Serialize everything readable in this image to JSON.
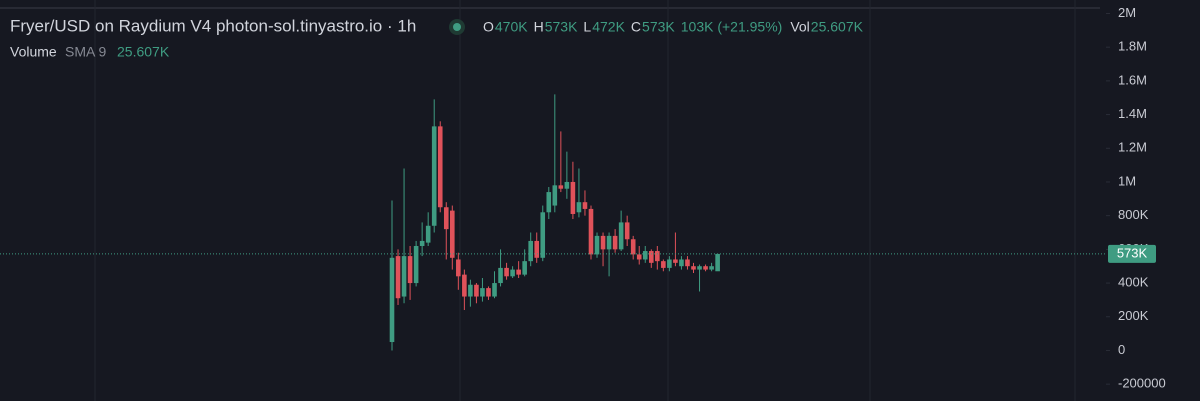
{
  "chart_data": {
    "type": "candlestick",
    "title": "Fryer/USD on Raydium V4 photon-sol.tinyastro.io · 1h",
    "ohlc_legend": [
      {
        "key": "O",
        "value": "470K"
      },
      {
        "key": "H",
        "value": "573K"
      },
      {
        "key": "L",
        "value": "472K"
      },
      {
        "key": "C",
        "value": "573K"
      }
    ],
    "change": "103K (+21.95%)",
    "volume_legend": {
      "key": "Vol",
      "value": "25.607K"
    },
    "indicator": {
      "name": "Volume",
      "params": "SMA 9",
      "value": "25.607K"
    },
    "last_price": {
      "value": 573000,
      "label": "573K"
    },
    "up_color": "#3f9c82",
    "down_color": "#e0525a",
    "ylim": [
      -300000,
      2080000
    ],
    "yticks": [
      {
        "value": 2000000,
        "label": "2M"
      },
      {
        "value": 1800000,
        "label": "1.8M"
      },
      {
        "value": 1600000,
        "label": "1.6M"
      },
      {
        "value": 1400000,
        "label": "1.4M"
      },
      {
        "value": 1200000,
        "label": "1.2M"
      },
      {
        "value": 1000000,
        "label": "1M"
      },
      {
        "value": 800000,
        "label": "800K"
      },
      {
        "value": 600000,
        "label": "600K"
      },
      {
        "value": 400000,
        "label": "400K"
      },
      {
        "value": 200000,
        "label": "200K"
      },
      0,
      -200000
    ],
    "categories": [
      null,
      null,
      null,
      null,
      null,
      null,
      null,
      null,
      null,
      null,
      null,
      null,
      null,
      null,
      null,
      null,
      null,
      null,
      null,
      null,
      null,
      null,
      null,
      null,
      null,
      null,
      null,
      null,
      null,
      null,
      null,
      null,
      null,
      null,
      null,
      null,
      null,
      null,
      null,
      null,
      null,
      null,
      null,
      null,
      null,
      null,
      null,
      null,
      null,
      null,
      null,
      null,
      null,
      null,
      null
    ],
    "open": [
      50000,
      560000,
      320000,
      560000,
      400000,
      620000,
      640000,
      740000,
      1330000,
      850000,
      830000,
      540000,
      450000,
      320000,
      390000,
      320000,
      370000,
      320000,
      400000,
      490000,
      440000,
      480000,
      450000,
      530000,
      650000,
      550000,
      820000,
      860000,
      980000,
      960000,
      1000000,
      820000,
      880000,
      840000,
      570000,
      680000,
      600000,
      680000,
      600000,
      760000,
      660000,
      570000,
      540000,
      590000,
      590000,
      530000,
      490000,
      540000,
      500000,
      540000,
      500000,
      480000,
      500000,
      480000,
      470000
    ],
    "high": [
      890000,
      600000,
      1080000,
      620000,
      650000,
      760000,
      820000,
      1490000,
      1360000,
      880000,
      860000,
      580000,
      480000,
      420000,
      400000,
      430000,
      380000,
      470000,
      600000,
      520000,
      500000,
      530000,
      600000,
      700000,
      700000,
      860000,
      970000,
      1520000,
      1300000,
      1180000,
      1120000,
      1080000,
      950000,
      860000,
      700000,
      700000,
      700000,
      720000,
      830000,
      800000,
      680000,
      620000,
      620000,
      600000,
      620000,
      540000,
      560000,
      700000,
      560000,
      560000,
      520000,
      510000,
      510000,
      520000,
      573000
    ],
    "low": [
      0,
      270000,
      280000,
      300000,
      380000,
      560000,
      620000,
      700000,
      820000,
      540000,
      480000,
      360000,
      240000,
      260000,
      280000,
      290000,
      300000,
      310000,
      380000,
      420000,
      430000,
      430000,
      440000,
      500000,
      520000,
      530000,
      780000,
      820000,
      940000,
      900000,
      780000,
      790000,
      800000,
      540000,
      550000,
      500000,
      440000,
      580000,
      590000,
      620000,
      540000,
      510000,
      520000,
      490000,
      480000,
      470000,
      470000,
      500000,
      480000,
      480000,
      460000,
      350000,
      470000,
      470000,
      472000
    ],
    "close": [
      550000,
      310000,
      560000,
      400000,
      620000,
      650000,
      740000,
      1330000,
      850000,
      720000,
      550000,
      440000,
      320000,
      390000,
      320000,
      370000,
      320000,
      400000,
      490000,
      440000,
      480000,
      450000,
      530000,
      650000,
      550000,
      820000,
      940000,
      980000,
      960000,
      1000000,
      810000,
      880000,
      840000,
      570000,
      680000,
      600000,
      680000,
      600000,
      760000,
      660000,
      570000,
      540000,
      590000,
      520000,
      530000,
      490000,
      540000,
      520000,
      540000,
      500000,
      480000,
      500000,
      480000,
      500000,
      573000
    ]
  }
}
